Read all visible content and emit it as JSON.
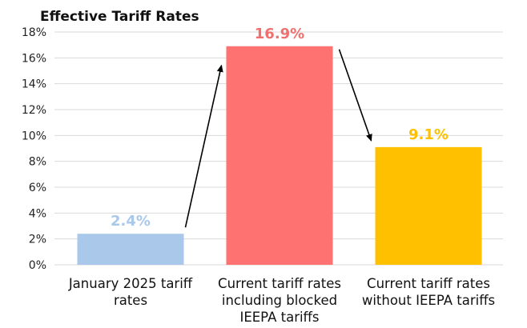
{
  "chart_data": {
    "type": "bar",
    "title": "Effective Tariff Rates",
    "categories": [
      "January 2025 tariff rates",
      "Current tariff rates including blocked IEEPA tariffs",
      "Current tariff rates without IEEPA tariffs"
    ],
    "category_label_lines": [
      [
        "January 2025 tariff",
        "rates"
      ],
      [
        "Current tariff rates",
        "including blocked",
        "IEEPA tariffs"
      ],
      [
        "Current tariff rates",
        "without IEEPA tariffs"
      ]
    ],
    "values": [
      2.4,
      16.9,
      9.1
    ],
    "data_labels": [
      "2.4%",
      "16.9%",
      "9.1%"
    ],
    "bar_colors": [
      "#A9C8EA",
      "#FF7272",
      "#FFC000"
    ],
    "data_label_colors": [
      "#A9C8EA",
      "#F07070",
      "#FFC000"
    ],
    "ylim": [
      0,
      18
    ],
    "yticks": [
      0,
      2,
      4,
      6,
      8,
      10,
      12,
      14,
      16,
      18
    ],
    "ytick_labels": [
      "0%",
      "2%",
      "4%",
      "6%",
      "8%",
      "10%",
      "12%",
      "14%",
      "16%",
      "18%"
    ],
    "xlabel": "",
    "ylabel": "",
    "grid": true,
    "gridline_color": "#D9D9D9",
    "annotations": [
      {
        "type": "arrow",
        "from": "bar-1-top",
        "to": "bar-2-top"
      },
      {
        "type": "arrow",
        "from": "bar-2-top",
        "to": "bar-3-top"
      }
    ]
  }
}
